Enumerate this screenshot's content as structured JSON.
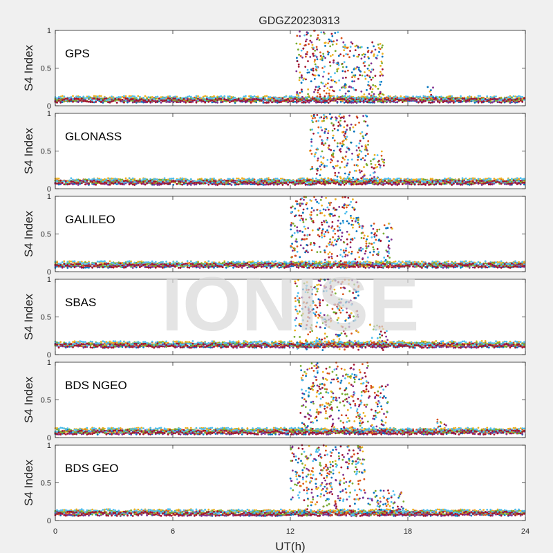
{
  "chart_data": {
    "type": "scatter",
    "title": "GDGZ20230313",
    "xlabel": "UT(h)",
    "ylabel": "S4 Index",
    "xlim": [
      0,
      24
    ],
    "ylim": [
      0,
      1
    ],
    "xticks": [
      "0",
      "6",
      "12",
      "18",
      "24"
    ],
    "yticks": [
      "0",
      "0.5",
      "1"
    ],
    "watermark": "IONISE",
    "series_colors": [
      "#0072BD",
      "#D95319",
      "#EDB120",
      "#7E2F8E",
      "#77AC30",
      "#4DBEEE",
      "#A2142F"
    ],
    "panels": [
      {
        "label": "GPS",
        "baseline_s4": 0.07,
        "events": [
          {
            "ut_start": 12.3,
            "ut_end": 14.8,
            "s4_max": 1.0
          },
          {
            "ut_start": 14.8,
            "ut_end": 16.8,
            "s4_max": 0.85
          },
          {
            "ut_start": 19.0,
            "ut_end": 19.5,
            "s4_max": 0.25
          }
        ]
      },
      {
        "label": "GLONASS",
        "baseline_s4": 0.08,
        "events": [
          {
            "ut_start": 13.0,
            "ut_end": 14.3,
            "s4_max": 1.0
          },
          {
            "ut_start": 14.3,
            "ut_end": 16.0,
            "s4_max": 1.0
          },
          {
            "ut_start": 16.0,
            "ut_end": 16.8,
            "s4_max": 0.5
          }
        ]
      },
      {
        "label": "GALILEO",
        "baseline_s4": 0.08,
        "events": [
          {
            "ut_start": 12.0,
            "ut_end": 14.0,
            "s4_max": 1.0
          },
          {
            "ut_start": 14.0,
            "ut_end": 15.5,
            "s4_max": 1.0
          },
          {
            "ut_start": 15.5,
            "ut_end": 17.2,
            "s4_max": 0.65
          }
        ]
      },
      {
        "label": "SBAS",
        "baseline_s4": 0.12,
        "events": [
          {
            "ut_start": 12.2,
            "ut_end": 13.5,
            "s4_max": 1.0
          },
          {
            "ut_start": 13.5,
            "ut_end": 15.5,
            "s4_max": 1.0
          },
          {
            "ut_start": 16.0,
            "ut_end": 17.0,
            "s4_max": 0.4
          }
        ]
      },
      {
        "label": "BDS NGEO",
        "baseline_s4": 0.07,
        "events": [
          {
            "ut_start": 12.5,
            "ut_end": 14.5,
            "s4_max": 1.0
          },
          {
            "ut_start": 14.5,
            "ut_end": 16.0,
            "s4_max": 1.0
          },
          {
            "ut_start": 16.0,
            "ut_end": 17.0,
            "s4_max": 0.7
          },
          {
            "ut_start": 19.5,
            "ut_end": 20.0,
            "s4_max": 0.25
          }
        ]
      },
      {
        "label": "BDS GEO",
        "baseline_s4": 0.09,
        "events": [
          {
            "ut_start": 12.0,
            "ut_end": 14.0,
            "s4_max": 1.0
          },
          {
            "ut_start": 14.0,
            "ut_end": 15.8,
            "s4_max": 1.0
          },
          {
            "ut_start": 15.8,
            "ut_end": 17.8,
            "s4_max": 0.4
          }
        ]
      }
    ]
  }
}
